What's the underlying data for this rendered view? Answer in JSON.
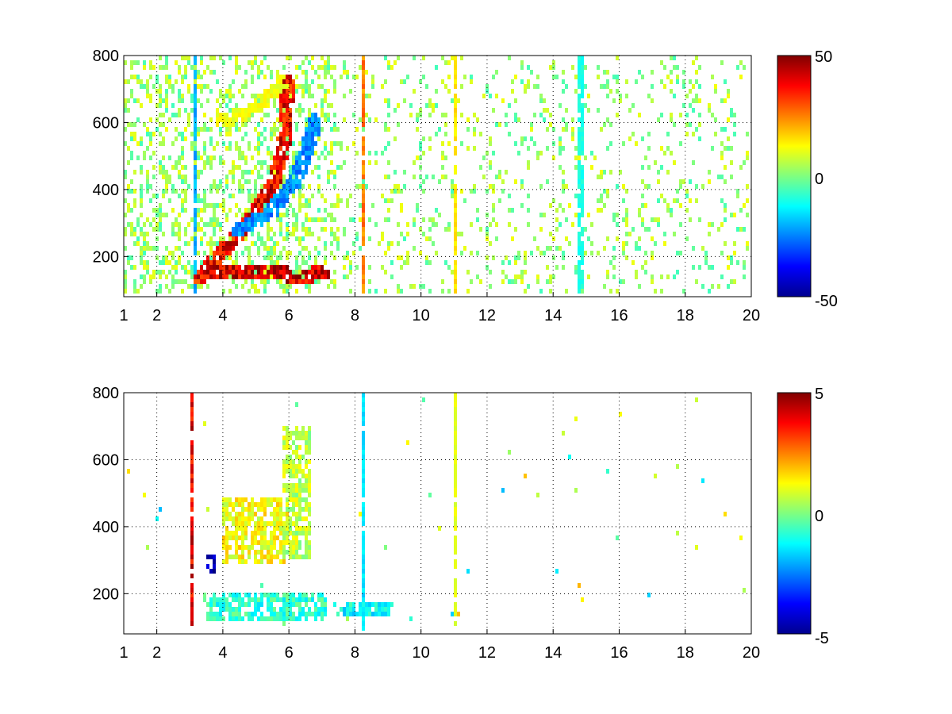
{
  "chart_data": [
    {
      "type": "heatmap",
      "title": "",
      "xlabel": "",
      "ylabel": "",
      "xlim": [
        1,
        20
      ],
      "ylim": [
        80,
        800
      ],
      "x_ticks": [
        1,
        2,
        4,
        6,
        8,
        10,
        12,
        14,
        16,
        18,
        20
      ],
      "y_ticks": [
        200,
        400,
        600,
        800
      ],
      "grid": "on",
      "colormap": "jet",
      "colorbar": {
        "range": [
          -50,
          50
        ],
        "tick_labels": [
          "50",
          "0",
          "-50"
        ],
        "placement": "right"
      },
      "features": {
        "vertical_lines": [
          {
            "x": 3.15,
            "value": -20
          },
          {
            "x": 8.3,
            "value": 25
          },
          {
            "x": 11.1,
            "value": 15
          },
          {
            "x": 14.9,
            "value": -10
          }
        ],
        "curves": [
          {
            "name": "",
            "points": [
              [
                3.3,
                130
              ],
              [
                4.2,
                230
              ],
              [
                5.0,
                320
              ],
              [
                5.6,
                420
              ],
              [
                5.9,
                560
              ],
              [
                6.0,
                720
              ]
            ],
            "value": 40
          },
          {
            "name": "",
            "points": [
              [
                4.5,
                270
              ],
              [
                5.5,
                330
              ],
              [
                6.2,
                420
              ],
              [
                6.6,
                520
              ],
              [
                6.8,
                600
              ]
            ],
            "value": -25
          },
          {
            "name": "",
            "points": [
              [
                3.6,
                140
              ],
              [
                5.0,
                145
              ],
              [
                6.3,
                135
              ],
              [
                7.1,
                140
              ]
            ],
            "value": 45
          },
          {
            "name": "",
            "points": [
              [
                4.0,
                600
              ],
              [
                5.0,
                640
              ],
              [
                5.8,
                720
              ]
            ],
            "value": 12
          }
        ]
      }
    },
    {
      "type": "heatmap",
      "title": "",
      "xlabel": "",
      "ylabel": "",
      "xlim": [
        1,
        20
      ],
      "ylim": [
        80,
        800
      ],
      "x_ticks": [
        1,
        2,
        4,
        6,
        8,
        10,
        12,
        14,
        16,
        18,
        20
      ],
      "y_ticks": [
        200,
        400,
        600,
        800
      ],
      "grid": "on",
      "colormap": "jet",
      "colorbar": {
        "range": [
          -5,
          5
        ],
        "tick_labels": [
          "5",
          "0",
          "-5"
        ],
        "placement": "right"
      },
      "features": {
        "vertical_lines": [
          {
            "x": 3.1,
            "value": 4
          },
          {
            "x": 8.3,
            "value": -1.5
          },
          {
            "x": 11.1,
            "value": 1
          }
        ],
        "patches": [
          {
            "x": [
              3.4,
              7.2
            ],
            "y": [
              110,
              200
            ],
            "value": -0.8
          },
          {
            "x": [
              4.0,
              6.0
            ],
            "y": [
              280,
              480
            ],
            "value": 1.2
          },
          {
            "x": [
              5.8,
              6.7
            ],
            "y": [
              300,
              700
            ],
            "value": 0.6
          },
          {
            "x": [
              7.4,
              9.2
            ],
            "y": [
              120,
              160
            ],
            "value": -1.2
          },
          {
            "x": [
              3.5,
              3.8
            ],
            "y": [
              250,
              310
            ],
            "value": -4.5
          }
        ]
      }
    }
  ]
}
